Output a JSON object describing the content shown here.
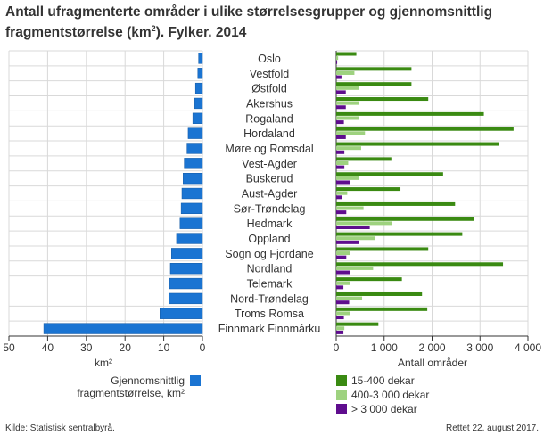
{
  "title_line1": "Antall ufragmenterte områder i ulike størrelsesgrupper og gjennomsnittlig",
  "title_line2_pre": "fragmentstørrelse (km",
  "title_line2_sup": "2",
  "title_line2_post": "). Fylker. 2014",
  "source": "Kilde: Statistisk sentralbyrå.",
  "updated": "Rettet 22. august 2017.",
  "colors": {
    "avg": "#1a74d2",
    "small": "#3a8a12",
    "medium": "#9ed27f",
    "large": "#5f0d8e",
    "grid": "#d9d9d9",
    "axis": "#333333"
  },
  "chart_data": [
    {
      "type": "bar",
      "orientation": "horizontal",
      "direction": "right-to-left",
      "categories": [
        "Oslo",
        "Vestfold",
        "Østfold",
        "Akershus",
        "Rogaland",
        "Hordaland",
        "Møre og Romsdal",
        "Vest-Agder",
        "Buskerud",
        "Aust-Agder",
        "Sør-Trøndelag",
        "Hedmark",
        "Oppland",
        "Sogn og Fjordane",
        "Nordland",
        "Telemark",
        "Nord-Trøndelag",
        "Troms Romsa",
        "Finnmark Finnmárku"
      ],
      "series": [
        {
          "name": "Gjennomsnittlig fragmentstørrelse, km²",
          "values": [
            1,
            1.2,
            1.8,
            2,
            2.5,
            3.7,
            4,
            4.7,
            5,
            5.3,
            5.5,
            5.8,
            6.7,
            8,
            8.3,
            8.5,
            8.7,
            11,
            41
          ]
        }
      ],
      "xlabel": "km²",
      "xlim": [
        0,
        50
      ],
      "xticks": [
        50,
        40,
        30,
        20,
        10,
        0
      ],
      "legend": "bottom"
    },
    {
      "type": "bar",
      "orientation": "horizontal",
      "grouped": true,
      "categories": [
        "Oslo",
        "Vestfold",
        "Østfold",
        "Akershus",
        "Rogaland",
        "Hordaland",
        "Møre og Romsdal",
        "Vest-Agder",
        "Buskerud",
        "Aust-Agder",
        "Sør-Trøndelag",
        "Hedmark",
        "Oppland",
        "Sogn og Fjordane",
        "Nordland",
        "Telemark",
        "Nord-Trøndelag",
        "Troms Romsa",
        "Finnmark Finnmárku"
      ],
      "series": [
        {
          "name": "15-400 dekar",
          "values": [
            420,
            1570,
            1570,
            1920,
            3080,
            3700,
            3400,
            1150,
            2230,
            1340,
            2480,
            2880,
            2630,
            1920,
            3480,
            1370,
            1790,
            1900,
            880
          ]
        },
        {
          "name": "400-3 000 dekar",
          "values": [
            40,
            380,
            470,
            480,
            480,
            600,
            520,
            250,
            470,
            230,
            570,
            1160,
            800,
            280,
            770,
            290,
            540,
            280,
            170
          ]
        },
        {
          "name": "> 3 000 dekar",
          "values": [
            20,
            110,
            200,
            200,
            160,
            200,
            170,
            170,
            290,
            130,
            210,
            700,
            480,
            210,
            290,
            150,
            270,
            160,
            150
          ]
        }
      ],
      "xlabel": "Antall områder",
      "xlim": [
        0,
        4000
      ],
      "xticks": [
        "0",
        "1 000",
        "2 000",
        "3 000",
        "4 000"
      ],
      "legend": "bottom"
    }
  ]
}
